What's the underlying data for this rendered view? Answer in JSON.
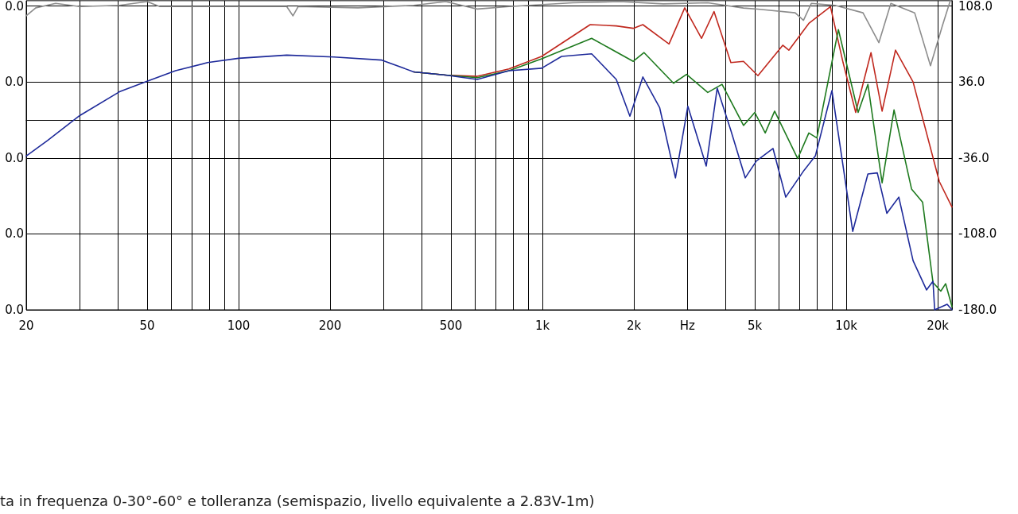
{
  "chart_data": {
    "type": "line",
    "xlabel": null,
    "annotations": [
      "ta in frequenza 0-30°-60° e tolleranza (semispazio, livello equivalente a 2.83V-1m)",
      "0.0",
      "0.0",
      "0.0",
      "0.0",
      "0.0"
    ],
    "log": "x",
    "grid": true,
    "marker": "none",
    "line_style": "solid",
    "xlim": [
      20,
      22280
    ],
    "xticks": [
      20,
      {
        "value": 30,
        "label": null
      },
      {
        "value": 40,
        "label": null
      },
      50,
      {
        "value": 60,
        "label": null
      },
      {
        "value": 70,
        "label": null
      },
      {
        "value": 80,
        "label": null
      },
      {
        "value": 90,
        "label": null
      },
      100,
      200,
      {
        "value": 300,
        "label": null
      },
      {
        "value": 400,
        "label": null
      },
      500,
      {
        "value": 600,
        "label": null
      },
      {
        "value": 700,
        "label": null
      },
      {
        "value": 800,
        "label": null
      },
      {
        "value": 900,
        "label": null
      },
      {
        "value": 1000,
        "label": "1k"
      },
      {
        "value": 2000,
        "label": "2k"
      },
      {
        "value": 3000,
        "label": "Hz"
      },
      {
        "value": 4000,
        "label": null
      },
      {
        "value": 5000,
        "label": "5k"
      },
      {
        "value": 6000,
        "label": null
      },
      {
        "value": 7000,
        "label": null
      },
      {
        "value": 8000,
        "label": null
      },
      {
        "value": 9000,
        "label": null
      },
      {
        "value": 10000,
        "label": "10k"
      },
      {
        "value": 20000,
        "label": "20k"
      }
    ],
    "ylim": [
      -180,
      113
    ],
    "yticks": [
      {
        "value": 108,
        "label": "108.0"
      },
      {
        "value": 36,
        "label": "36.0"
      },
      {
        "value": -36,
        "label": "-36.0"
      },
      {
        "value": -108,
        "label": "-108.0"
      },
      {
        "value": -180,
        "label": "-180.0"
      }
    ],
    "series": [
      {
        "color": "#8c8c8c",
        "x": [
          20,
          21.5,
          25,
          30,
          40.5,
          50,
          55,
          79,
          144,
          151,
          157,
          247,
          377,
          480,
          610,
          776,
          1258,
          1800,
          2500,
          3500,
          4590,
          5120,
          6790,
          7230,
          7670,
          9190,
          11350,
          12800,
          14020,
          16790,
          18930,
          20740,
          22000
        ],
        "values": [
          98.6,
          106.2,
          110.4,
          107.4,
          108.6,
          112.1,
          107.4,
          107.4,
          107.4,
          98.6,
          107.4,
          106.2,
          108.6,
          112.1,
          105.1,
          107.4,
          111,
          112.1,
          110,
          111,
          106,
          105,
          101.5,
          94.4,
          110.4,
          108.6,
          101.5,
          73.2,
          110.4,
          101.5,
          51.4,
          89.7,
          113
        ]
      },
      {
        "color": "#c0281e",
        "x": [
          377,
          480,
          610,
          776,
          994,
          1436,
          1750,
          1990,
          2140,
          2610,
          2940,
          3340,
          3670,
          4170,
          4590,
          5120,
          6180,
          6470,
          7530,
          8870,
          9760,
          10740,
          12060,
          13120,
          14520,
          16590,
          20240,
          22280
        ],
        "values": [
          45.5,
          42.5,
          41.3,
          48.4,
          60.2,
          90.3,
          89.1,
          86.8,
          90.3,
          72,
          106.2,
          77.3,
          102.7,
          54.3,
          55.5,
          41.9,
          70.8,
          66.1,
          91.5,
          107.4,
          54.3,
          7.1,
          63.8,
          8.3,
          66.1,
          36,
          -58.4,
          -82.6
        ]
      },
      {
        "color": "#1e7a1e",
        "x": [
          377,
          480,
          610,
          776,
          994,
          1452,
          1990,
          2160,
          2700,
          2980,
          3500,
          3900,
          4590,
          5000,
          5410,
          5810,
          6920,
          7530,
          8000,
          9420,
          10940,
          11780,
          13120,
          14360,
          16400,
          17830,
          19290,
          20470,
          21230,
          22280
        ],
        "values": [
          45.5,
          42.5,
          40,
          46.6,
          57.9,
          77.3,
          55.5,
          63.8,
          34.8,
          43.1,
          26,
          33.7,
          -5.3,
          7.1,
          -12.4,
          8.3,
          -36.6,
          -12.4,
          -17.1,
          85.6,
          7.1,
          33.7,
          -59.6,
          9.5,
          -65.5,
          -77.9,
          -154,
          -162.3,
          -155.2,
          -177
        ]
      },
      {
        "color": "#1e2a9a",
        "x": [
          20,
          23.5,
          30,
          40.5,
          50,
          62,
          79,
          100,
          144,
          206,
          296,
          377,
          480,
          610,
          776,
          994,
          1156,
          1452,
          1750,
          1940,
          2140,
          2430,
          2740,
          3010,
          3460,
          3760,
          4170,
          4650,
          5060,
          5740,
          6320,
          7260,
          7910,
          8970,
          10500,
          11780,
          12650,
          13600,
          14890,
          16590,
          18370,
          19290,
          19540,
          21480,
          22280
        ],
        "values": [
          -34.2,
          -19.5,
          4.1,
          26.6,
          36.6,
          46.6,
          54.3,
          58.4,
          61.4,
          59.6,
          56.7,
          45.5,
          42.5,
          38.4,
          46.6,
          49,
          60.2,
          62.6,
          38.4,
          3.6,
          40.7,
          11.8,
          -54.9,
          13,
          -43.7,
          30.1,
          -10,
          -54.9,
          -38.9,
          -27.1,
          -73.2,
          -47.8,
          -34.2,
          27.8,
          -105.6,
          -51.3,
          -50.2,
          -88.5,
          -73.2,
          -133.4,
          -161.1,
          -152.9,
          -180,
          -174.7,
          -180
        ]
      }
    ]
  }
}
